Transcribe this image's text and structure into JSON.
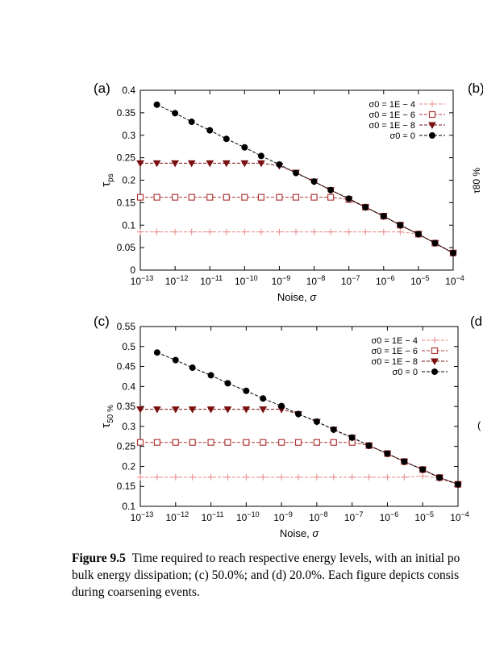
{
  "panel_labels": [
    "(a)",
    "(b)",
    "(c)",
    "(d"
  ],
  "right_edge_text": {
    "b_ylabel": "τ80 %",
    "d_fragment": "("
  },
  "caption": {
    "figure": "Figure 9.5",
    "line1": "Time required to reach respective energy levels, with an initial po",
    "line2": "bulk energy dissipation; (c) 50.0%; and (d) 20.0%. Each figure depicts consis",
    "line3": "during coarsening events."
  },
  "chart_data": [
    {
      "type": "line",
      "panel": "(a)",
      "xlabel": "Noise, σ",
      "ylabel": "τps",
      "xscale": "log",
      "xlim": [
        1e-13,
        0.0001
      ],
      "ylim": [
        0,
        0.4
      ],
      "ytick_labels": [
        "0",
        "0.05",
        "0.1",
        "0.15",
        "0.2",
        "0.25",
        "0.3",
        "0.35",
        "0.4"
      ],
      "xtick_labels": [
        "10−13",
        "10−12",
        "10−11",
        "10−10",
        "10−9",
        "10−8",
        "10−7",
        "10−6",
        "10−5",
        "10−4"
      ],
      "legend_position": "top-right",
      "grid": false,
      "series": [
        {
          "name": "σ0 = 1E − 4",
          "color": "#e88a8a",
          "marker": "plus",
          "x": [
            1e-13,
            3e-13,
            1e-12,
            3e-12,
            1e-11,
            3e-11,
            1e-10,
            3e-10,
            1e-09,
            3e-09,
            1e-08,
            3e-08,
            1e-07,
            3e-07,
            1e-06,
            3e-06,
            1e-05,
            3e-05,
            0.0001
          ],
          "y": [
            0.085,
            0.085,
            0.085,
            0.085,
            0.085,
            0.085,
            0.085,
            0.085,
            0.085,
            0.085,
            0.085,
            0.085,
            0.085,
            0.085,
            0.085,
            0.085,
            0.08,
            0.06,
            0.038
          ]
        },
        {
          "name": "σ0 = 1E − 6",
          "color": "#b03a3a",
          "marker": "open-square",
          "x": [
            1e-13,
            3e-13,
            1e-12,
            3e-12,
            1e-11,
            3e-11,
            1e-10,
            3e-10,
            1e-09,
            3e-09,
            1e-08,
            3e-08,
            1e-07,
            3e-07,
            1e-06,
            3e-06,
            1e-05,
            3e-05,
            0.0001
          ],
          "y": [
            0.162,
            0.162,
            0.162,
            0.162,
            0.162,
            0.162,
            0.162,
            0.162,
            0.162,
            0.162,
            0.162,
            0.162,
            0.157,
            0.14,
            0.12,
            0.1,
            0.08,
            0.06,
            0.038
          ]
        },
        {
          "name": "σ0 = 1E − 8",
          "color": "#7a1010",
          "marker": "filled-triangle-down",
          "x": [
            1e-13,
            3e-13,
            1e-12,
            3e-12,
            1e-11,
            3e-11,
            1e-10,
            3e-10,
            1e-09,
            3e-09,
            1e-08,
            3e-08,
            1e-07,
            3e-07,
            1e-06,
            3e-06,
            1e-05,
            3e-05,
            0.0001
          ],
          "y": [
            0.238,
            0.238,
            0.238,
            0.238,
            0.238,
            0.238,
            0.238,
            0.238,
            0.232,
            0.217,
            0.197,
            0.178,
            0.158,
            0.14,
            0.12,
            0.1,
            0.08,
            0.06,
            0.038
          ]
        },
        {
          "name": "σ0 = 0",
          "color": "#000000",
          "marker": "filled-circle",
          "x": [
            3e-13,
            1e-12,
            3e-12,
            1e-11,
            3e-11,
            1e-10,
            3e-10,
            1e-09,
            3e-09,
            1e-08,
            3e-08,
            1e-07,
            3e-07,
            1e-06,
            3e-06,
            1e-05,
            3e-05,
            0.0001
          ],
          "y": [
            0.368,
            0.349,
            0.33,
            0.311,
            0.292,
            0.273,
            0.254,
            0.235,
            0.216,
            0.197,
            0.178,
            0.159,
            0.14,
            0.12,
            0.1,
            0.08,
            0.06,
            0.038
          ]
        }
      ]
    },
    {
      "type": "line",
      "panel": "(c)",
      "xlabel": "Noise, σ",
      "ylabel": "τ50 %",
      "xscale": "log",
      "xlim": [
        1e-13,
        0.0001
      ],
      "ylim": [
        0.1,
        0.55
      ],
      "ytick_labels": [
        "0.1",
        "0.15",
        "0.2",
        "0.25",
        "0.3",
        "0.35",
        "0.4",
        "0.45",
        "0.5",
        "0.55"
      ],
      "xtick_labels": [
        "10−13",
        "10−12",
        "10−11",
        "10−10",
        "10−9",
        "10−8",
        "10−7",
        "10−6",
        "10−5",
        "10−4"
      ],
      "legend_position": "top-right",
      "grid": false,
      "series": [
        {
          "name": "σ0 = 1E − 4",
          "color": "#e88a8a",
          "marker": "plus",
          "x": [
            1e-13,
            3e-13,
            1e-12,
            3e-12,
            1e-11,
            3e-11,
            1e-10,
            3e-10,
            1e-09,
            3e-09,
            1e-08,
            3e-08,
            1e-07,
            3e-07,
            1e-06,
            3e-06,
            1e-05,
            3e-05,
            0.0001
          ],
          "y": [
            0.173,
            0.173,
            0.173,
            0.173,
            0.173,
            0.173,
            0.173,
            0.173,
            0.173,
            0.173,
            0.173,
            0.173,
            0.173,
            0.173,
            0.173,
            0.173,
            0.176,
            0.17,
            0.155
          ]
        },
        {
          "name": "σ0 = 1E − 6",
          "color": "#b03a3a",
          "marker": "open-square",
          "x": [
            1e-13,
            3e-13,
            1e-12,
            3e-12,
            1e-11,
            3e-11,
            1e-10,
            3e-10,
            1e-09,
            3e-09,
            1e-08,
            3e-08,
            1e-07,
            3e-07,
            1e-06,
            3e-06,
            1e-05,
            3e-05,
            0.0001
          ],
          "y": [
            0.26,
            0.26,
            0.26,
            0.26,
            0.26,
            0.26,
            0.26,
            0.26,
            0.26,
            0.26,
            0.26,
            0.26,
            0.26,
            0.252,
            0.232,
            0.212,
            0.192,
            0.172,
            0.155
          ]
        },
        {
          "name": "σ0 = 1E − 8",
          "color": "#7a1010",
          "marker": "filled-triangle-down",
          "x": [
            1e-13,
            3e-13,
            1e-12,
            3e-12,
            1e-11,
            3e-11,
            1e-10,
            3e-10,
            1e-09,
            3e-09,
            1e-08,
            3e-08,
            1e-07,
            3e-07,
            1e-06,
            3e-06,
            1e-05,
            3e-05,
            0.0001
          ],
          "y": [
            0.343,
            0.343,
            0.343,
            0.343,
            0.343,
            0.343,
            0.343,
            0.343,
            0.343,
            0.331,
            0.312,
            0.292,
            0.272,
            0.252,
            0.232,
            0.212,
            0.192,
            0.172,
            0.155
          ]
        },
        {
          "name": "σ0 = 0",
          "color": "#000000",
          "marker": "filled-circle",
          "x": [
            3e-13,
            1e-12,
            3e-12,
            1e-11,
            3e-11,
            1e-10,
            3e-10,
            1e-09,
            3e-09,
            1e-08,
            3e-08,
            1e-07,
            3e-07,
            1e-06,
            3e-06,
            1e-05,
            3e-05,
            0.0001
          ],
          "y": [
            0.485,
            0.466,
            0.447,
            0.428,
            0.408,
            0.389,
            0.37,
            0.351,
            0.331,
            0.312,
            0.292,
            0.272,
            0.252,
            0.232,
            0.212,
            0.192,
            0.172,
            0.155
          ]
        }
      ]
    }
  ]
}
